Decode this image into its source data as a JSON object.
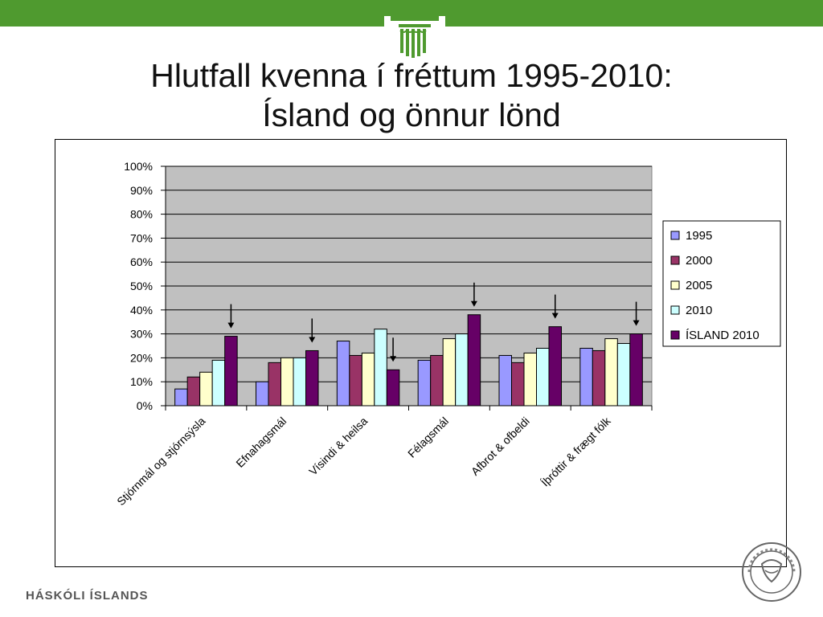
{
  "header": {
    "title_line1": "Hlutfall kvenna í fréttum 1995-2010:",
    "title_line2": "Ísland og önnur lönd"
  },
  "footer": {
    "institution": "HÁSKÓLI ÍSLANDS"
  },
  "colors": {
    "top_bar": "#4f9a2f",
    "plot_bg": "#c0c0c0",
    "series": [
      "#9999ff",
      "#993366",
      "#ffffcc",
      "#ccffff",
      "#660066"
    ]
  },
  "chart_data": {
    "type": "bar",
    "title": "",
    "xlabel": "",
    "ylabel": "",
    "categories": [
      "Stjórnmál og stjórnsýsla",
      "Efnahagsmál",
      "Vísindi & heilsa",
      "Félagsmál",
      "Afbrot & ofbeldi",
      "Íþróttir & frægt fólk"
    ],
    "series": [
      {
        "name": "1995",
        "values": [
          7,
          10,
          27,
          19,
          21,
          24
        ]
      },
      {
        "name": "2000",
        "values": [
          12,
          18,
          21,
          21,
          18,
          23
        ]
      },
      {
        "name": "2005",
        "values": [
          14,
          20,
          22,
          28,
          22,
          28
        ]
      },
      {
        "name": "2010",
        "values": [
          19,
          20,
          32,
          30,
          24,
          26
        ]
      },
      {
        "name": "ÍSLAND 2010",
        "values": [
          29,
          23,
          15,
          38,
          33,
          30
        ]
      }
    ],
    "ylim": [
      0,
      100
    ],
    "yticks": [
      "0%",
      "10%",
      "20%",
      "30%",
      "40%",
      "50%",
      "60%",
      "70%",
      "80%",
      "90%",
      "100%"
    ],
    "grid": true,
    "legend_position": "right",
    "annotations": "downward arrows above each ÍSLAND 2010 bar"
  }
}
